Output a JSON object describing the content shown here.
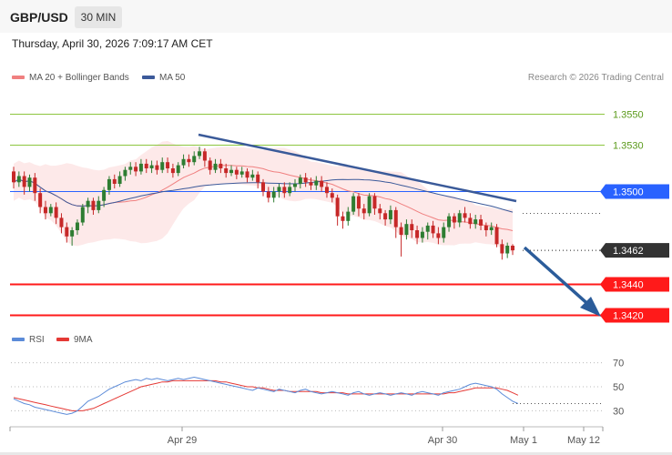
{
  "header": {
    "symbol": "GBP/USD",
    "timeframe": "30 MIN",
    "datetime": "Thursday, April 30, 2026 7:09:17 AM CET"
  },
  "legend": {
    "ma20_label": "MA 20 + Bollinger Bands",
    "ma50_label": "MA 50",
    "research": "Research © 2026 Trading Central",
    "rsi_label": "RSI",
    "ma9_label": "9MA"
  },
  "colors": {
    "bull": "#2e7d32",
    "bear": "#c62828",
    "resistance_green": "#8dc63f",
    "pivot_blue": "#2962ff",
    "support_red": "#ff1a1a",
    "ma20": "#f08080",
    "ma50": "#3c5a9a",
    "rsi": "#5b8bd8",
    "rsi_ma": "#e53935"
  },
  "chart_data": [
    {
      "type": "candlestick",
      "ylim": [
        1.3415,
        1.3565
      ],
      "levels": [
        {
          "value": 1.355,
          "label": "1.3550",
          "role": "resistance",
          "color": "#8dc63f"
        },
        {
          "value": 1.353,
          "label": "1.3530",
          "role": "resistance",
          "color": "#8dc63f"
        },
        {
          "value": 1.35,
          "label": "1.3500",
          "role": "pivot",
          "color": "#2962ff"
        },
        {
          "value": 1.344,
          "label": "1.3440",
          "role": "support",
          "color": "#ff1a1a"
        },
        {
          "value": 1.342,
          "label": "1.3420",
          "role": "support",
          "color": "#ff1a1a"
        }
      ],
      "last_price": {
        "value": 1.3462,
        "label": "1.3462"
      },
      "x_labels": [
        "Apr 29",
        "Apr 30",
        "May 1",
        "May 12"
      ],
      "candles": [
        [
          1.3513,
          1.3506,
          1.3516,
          1.3502
        ],
        [
          1.3506,
          1.351,
          1.3513,
          1.3503
        ],
        [
          1.351,
          1.3503,
          1.3513,
          1.3498
        ],
        [
          1.3503,
          1.3509,
          1.3511,
          1.35
        ],
        [
          1.3509,
          1.3499,
          1.3512,
          1.3494
        ],
        [
          1.3499,
          1.349,
          1.3502,
          1.3486
        ],
        [
          1.349,
          1.3486,
          1.3494,
          1.3482
        ],
        [
          1.3486,
          1.349,
          1.3492,
          1.3484
        ],
        [
          1.349,
          1.3483,
          1.3493,
          1.3479
        ],
        [
          1.3483,
          1.3477,
          1.3486,
          1.3473
        ],
        [
          1.3477,
          1.3471,
          1.348,
          1.3467
        ],
        [
          1.3471,
          1.3475,
          1.3477,
          1.3465
        ],
        [
          1.3475,
          1.348,
          1.3482,
          1.3472
        ],
        [
          1.348,
          1.349,
          1.3492,
          1.3478
        ],
        [
          1.349,
          1.3494,
          1.3496,
          1.3486
        ],
        [
          1.3494,
          1.3488,
          1.3496,
          1.3485
        ],
        [
          1.3488,
          1.3494,
          1.3497,
          1.3486
        ],
        [
          1.3494,
          1.3501,
          1.3503,
          1.349
        ],
        [
          1.3501,
          1.3508,
          1.351,
          1.3498
        ],
        [
          1.3508,
          1.3505,
          1.3511,
          1.3502
        ],
        [
          1.3505,
          1.351,
          1.3513,
          1.3503
        ],
        [
          1.351,
          1.3514,
          1.3516,
          1.3507
        ],
        [
          1.3514,
          1.3516,
          1.3519,
          1.3511
        ],
        [
          1.3516,
          1.3513,
          1.3519,
          1.351
        ],
        [
          1.3513,
          1.3518,
          1.3521,
          1.3511
        ],
        [
          1.3518,
          1.3515,
          1.3521,
          1.3512
        ],
        [
          1.3515,
          1.3517,
          1.352,
          1.3512
        ],
        [
          1.3517,
          1.3514,
          1.352,
          1.3511
        ],
        [
          1.3514,
          1.3519,
          1.3522,
          1.3512
        ],
        [
          1.3519,
          1.3515,
          1.3522,
          1.3512
        ],
        [
          1.3515,
          1.3512,
          1.3518,
          1.3509
        ],
        [
          1.3512,
          1.3517,
          1.3519,
          1.351
        ],
        [
          1.3517,
          1.3521,
          1.3524,
          1.3515
        ],
        [
          1.3521,
          1.3519,
          1.3524,
          1.3516
        ],
        [
          1.3519,
          1.3523,
          1.3526,
          1.3517
        ],
        [
          1.3523,
          1.3526,
          1.3529,
          1.3521
        ],
        [
          1.3526,
          1.352,
          1.3528,
          1.3516
        ],
        [
          1.352,
          1.3514,
          1.3522,
          1.3511
        ],
        [
          1.3514,
          1.3518,
          1.3521,
          1.3512
        ],
        [
          1.3518,
          1.3515,
          1.3521,
          1.3512
        ],
        [
          1.3515,
          1.3512,
          1.3518,
          1.3509
        ],
        [
          1.3512,
          1.3514,
          1.3517,
          1.351
        ],
        [
          1.3514,
          1.3511,
          1.3516,
          1.3508
        ],
        [
          1.3511,
          1.3513,
          1.3516,
          1.3509
        ],
        [
          1.3513,
          1.3509,
          1.3515,
          1.3506
        ],
        [
          1.3509,
          1.3511,
          1.3514,
          1.3507
        ],
        [
          1.3511,
          1.3506,
          1.3513,
          1.3502
        ],
        [
          1.3506,
          1.35,
          1.3508,
          1.3497
        ],
        [
          1.35,
          1.3496,
          1.3503,
          1.3493
        ],
        [
          1.3496,
          1.35,
          1.3503,
          1.3493
        ],
        [
          1.35,
          1.3503,
          1.3505,
          1.3496
        ],
        [
          1.3503,
          1.3499,
          1.3506,
          1.3496
        ],
        [
          1.3499,
          1.3503,
          1.3506,
          1.3497
        ],
        [
          1.3503,
          1.3505,
          1.3508,
          1.35
        ],
        [
          1.3505,
          1.3509,
          1.3511,
          1.3502
        ],
        [
          1.3509,
          1.3506,
          1.3512,
          1.3503
        ],
        [
          1.3506,
          1.3504,
          1.3509,
          1.3501
        ],
        [
          1.3504,
          1.3507,
          1.351,
          1.3501
        ],
        [
          1.3507,
          1.3503,
          1.351,
          1.35
        ],
        [
          1.3503,
          1.3499,
          1.3506,
          1.3496
        ],
        [
          1.3499,
          1.3496,
          1.3502,
          1.3493
        ],
        [
          1.3496,
          1.3484,
          1.3498,
          1.3478
        ],
        [
          1.3484,
          1.3481,
          1.3487,
          1.3476
        ],
        [
          1.3481,
          1.3487,
          1.349,
          1.3478
        ],
        [
          1.3487,
          1.3497,
          1.3499,
          1.3485
        ],
        [
          1.3497,
          1.3489,
          1.3499,
          1.3484
        ],
        [
          1.3489,
          1.3486,
          1.3492,
          1.3482
        ],
        [
          1.3486,
          1.3497,
          1.3499,
          1.3484
        ],
        [
          1.3497,
          1.3489,
          1.3499,
          1.3485
        ],
        [
          1.3489,
          1.3486,
          1.3492,
          1.3482
        ],
        [
          1.3486,
          1.3482,
          1.3488,
          1.3478
        ],
        [
          1.3482,
          1.3488,
          1.3491,
          1.3479
        ],
        [
          1.3488,
          1.3477,
          1.349,
          1.347
        ],
        [
          1.3477,
          1.3472,
          1.348,
          1.3458
        ],
        [
          1.3472,
          1.3479,
          1.3482,
          1.3469
        ],
        [
          1.3479,
          1.3475,
          1.3482,
          1.347
        ],
        [
          1.3475,
          1.347,
          1.3478,
          1.3466
        ],
        [
          1.347,
          1.3474,
          1.3477,
          1.3467
        ],
        [
          1.3474,
          1.3478,
          1.348,
          1.3469
        ],
        [
          1.3478,
          1.3473,
          1.3481,
          1.347
        ],
        [
          1.3473,
          1.347,
          1.3477,
          1.3466
        ],
        [
          1.347,
          1.3477,
          1.348,
          1.3467
        ],
        [
          1.3477,
          1.3484,
          1.3486,
          1.3474
        ],
        [
          1.3484,
          1.348,
          1.3486,
          1.3476
        ],
        [
          1.348,
          1.3486,
          1.3488,
          1.3477
        ],
        [
          1.3486,
          1.3483,
          1.349,
          1.348
        ],
        [
          1.3483,
          1.3479,
          1.3486,
          1.3476
        ],
        [
          1.3479,
          1.3482,
          1.3485,
          1.3476
        ],
        [
          1.3482,
          1.3478,
          1.3485,
          1.3475
        ],
        [
          1.3478,
          1.3475,
          1.348,
          1.3471
        ],
        [
          1.3475,
          1.3477,
          1.348,
          1.3472
        ],
        [
          1.3477,
          1.3466,
          1.3479,
          1.3464
        ],
        [
          1.3466,
          1.346,
          1.3469,
          1.3456
        ],
        [
          1.346,
          1.3465,
          1.3467,
          1.3457
        ],
        [
          1.3465,
          1.3462,
          1.3466,
          1.3459
        ]
      ]
    },
    {
      "type": "line",
      "name": "RSI",
      "ylim": [
        22,
        75
      ],
      "yticks": [
        70,
        50,
        30
      ],
      "rsi": [
        40,
        38,
        36,
        35,
        33,
        32,
        31,
        30,
        29,
        28,
        27,
        28,
        30,
        34,
        38,
        40,
        42,
        45,
        48,
        50,
        52,
        54,
        55,
        56,
        55,
        57,
        56,
        57,
        56,
        55,
        56,
        57,
        56,
        57,
        58,
        57,
        56,
        55,
        54,
        53,
        52,
        51,
        50,
        49,
        48,
        47,
        49,
        48,
        47,
        46,
        48,
        47,
        46,
        45,
        47,
        48,
        46,
        45,
        44,
        45,
        46,
        45,
        44,
        43,
        45,
        46,
        44,
        43,
        44,
        45,
        44,
        43,
        44,
        45,
        44,
        43,
        45,
        46,
        45,
        44,
        43,
        45,
        46,
        47,
        48,
        50,
        52,
        53,
        52,
        51,
        50,
        48,
        44,
        41,
        38,
        36
      ],
      "ma9": [
        41,
        40,
        39,
        38,
        37,
        36,
        35,
        34,
        33,
        32,
        31,
        30,
        30,
        30,
        31,
        32,
        34,
        36,
        38,
        40,
        42,
        44,
        46,
        48,
        50,
        51,
        52,
        53,
        54,
        54,
        55,
        55,
        55,
        55,
        55,
        55,
        55,
        55,
        55,
        54,
        54,
        53,
        52,
        51,
        50,
        50,
        49,
        49,
        48,
        47,
        47,
        47,
        46,
        46,
        46,
        46,
        46,
        46,
        45,
        45,
        45,
        45,
        45,
        44,
        44,
        44,
        44,
        44,
        44,
        44,
        44,
        44,
        44,
        44,
        44,
        44,
        44,
        44,
        44,
        44,
        44,
        44,
        45,
        45,
        46,
        47,
        48,
        49,
        49,
        49,
        49,
        49,
        48,
        47,
        45,
        43
      ]
    }
  ]
}
